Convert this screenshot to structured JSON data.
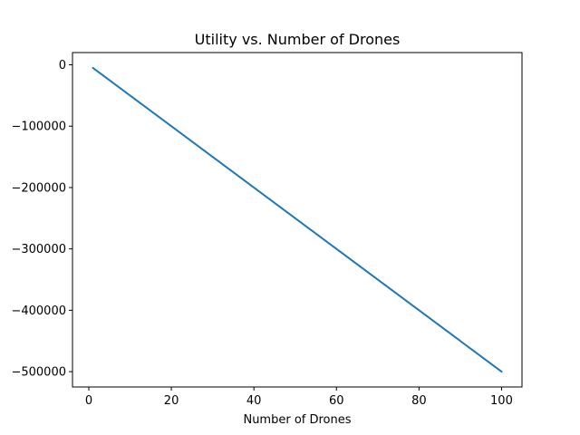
{
  "chart_data": {
    "type": "line",
    "title": "Utility vs. Number of Drones",
    "xlabel": "Number of Drones",
    "ylabel": "",
    "xlim": [
      -3.95,
      104.95
    ],
    "ylim": [
      -524950,
      19950
    ],
    "xticks": [
      0,
      20,
      40,
      60,
      80,
      100
    ],
    "yticks": [
      0,
      -100000,
      -200000,
      -300000,
      -400000,
      -500000
    ],
    "xtick_labels": [
      "0",
      "20",
      "40",
      "60",
      "80",
      "100"
    ],
    "ytick_labels": [
      "0",
      "−100000",
      "−200000",
      "−300000",
      "−400000",
      "−500000"
    ],
    "grid": false,
    "series": [
      {
        "color": "#1f77b4",
        "x": [
          1,
          100
        ],
        "y": [
          -5000,
          -500000
        ]
      }
    ]
  }
}
